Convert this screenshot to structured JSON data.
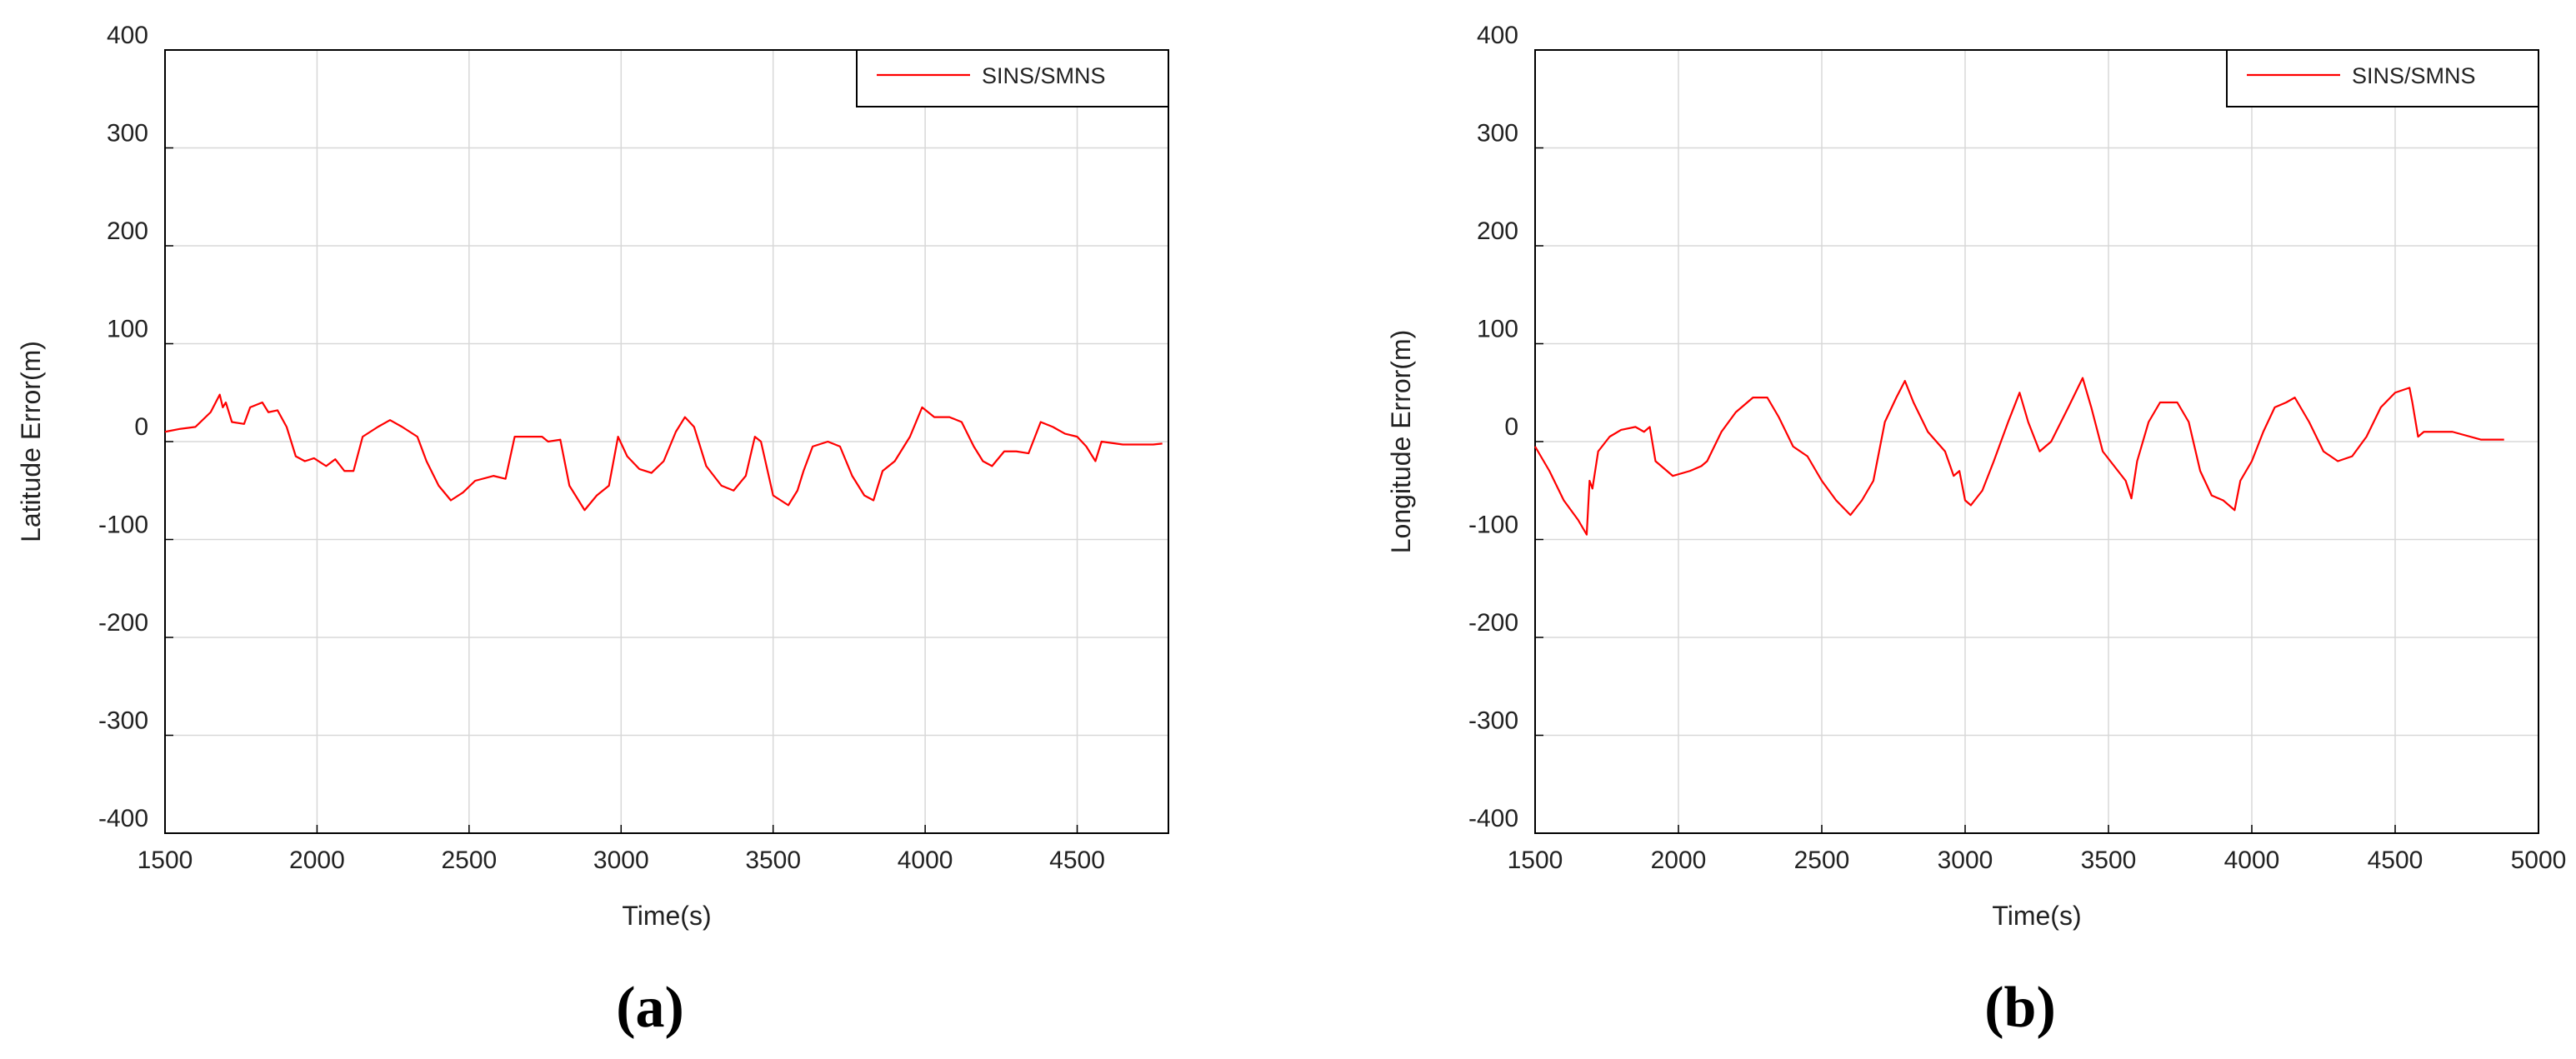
{
  "chart_data": [
    {
      "type": "line",
      "xlabel": "Time(s)",
      "ylabel": "Latitude Error(m)",
      "caption": "(a)",
      "grid": true,
      "legend": "upper right",
      "xlim": [
        1500,
        4800
      ],
      "xticks": [
        1500,
        2000,
        2500,
        3000,
        3500,
        4000,
        4500
      ],
      "ylim": [
        -400,
        400
      ],
      "yticks": [
        -400,
        -300,
        -200,
        -100,
        0,
        100,
        200,
        300,
        400
      ],
      "x": [
        1500,
        1550,
        1600,
        1650,
        1680,
        1690,
        1700,
        1720,
        1760,
        1780,
        1820,
        1840,
        1870,
        1900,
        1930,
        1960,
        1990,
        2030,
        2060,
        2090,
        2120,
        2150,
        2200,
        2240,
        2280,
        2330,
        2360,
        2400,
        2440,
        2480,
        2520,
        2580,
        2620,
        2650,
        2700,
        2740,
        2760,
        2800,
        2830,
        2880,
        2920,
        2960,
        2990,
        3020,
        3060,
        3100,
        3140,
        3180,
        3210,
        3240,
        3280,
        3330,
        3370,
        3410,
        3440,
        3460,
        3500,
        3550,
        3580,
        3600,
        3630,
        3680,
        3720,
        3760,
        3800,
        3830,
        3860,
        3900,
        3950,
        3990,
        4030,
        4080,
        4120,
        4160,
        4190,
        4220,
        4260,
        4300,
        4340,
        4380,
        4420,
        4460,
        4500,
        4530,
        4560,
        4580,
        4650,
        4750,
        4780
      ],
      "series": [
        {
          "name": "SINS/SMNS",
          "color": "#ff0000",
          "values": [
            10,
            13,
            15,
            30,
            48,
            35,
            40,
            20,
            18,
            35,
            40,
            30,
            32,
            15,
            -15,
            -20,
            -17,
            -25,
            -18,
            -30,
            -30,
            5,
            15,
            22,
            15,
            5,
            -20,
            -45,
            -60,
            -52,
            -40,
            -35,
            -38,
            5,
            5,
            5,
            0,
            2,
            -45,
            -70,
            -55,
            -45,
            5,
            -15,
            -28,
            -32,
            -20,
            10,
            25,
            15,
            -25,
            -45,
            -50,
            -35,
            5,
            0,
            -55,
            -65,
            -50,
            -30,
            -5,
            0,
            -5,
            -35,
            -55,
            -60,
            -30,
            -20,
            5,
            35,
            25,
            25,
            20,
            -5,
            -20,
            -25,
            -10,
            -10,
            -12,
            20,
            15,
            8,
            5,
            -5,
            -20,
            0,
            -3,
            -3,
            -2
          ]
        }
      ]
    },
    {
      "type": "line",
      "xlabel": "Time(s)",
      "ylabel": "Longitude Error(m)",
      "caption": "(b)",
      "grid": true,
      "legend": "upper right",
      "xlim": [
        1500,
        5000
      ],
      "xticks": [
        1500,
        2000,
        2500,
        3000,
        3500,
        4000,
        4500,
        5000
      ],
      "ylim": [
        -400,
        400
      ],
      "yticks": [
        -400,
        -300,
        -200,
        -100,
        0,
        100,
        200,
        300,
        400
      ],
      "x": [
        1500,
        1550,
        1600,
        1650,
        1680,
        1690,
        1700,
        1720,
        1760,
        1800,
        1850,
        1880,
        1900,
        1920,
        1980,
        2040,
        2080,
        2100,
        2150,
        2200,
        2260,
        2310,
        2350,
        2400,
        2450,
        2500,
        2550,
        2600,
        2640,
        2680,
        2720,
        2760,
        2790,
        2820,
        2870,
        2930,
        2960,
        2980,
        3000,
        3020,
        3060,
        3100,
        3150,
        3190,
        3220,
        3260,
        3300,
        3360,
        3410,
        3440,
        3480,
        3520,
        3560,
        3580,
        3600,
        3640,
        3680,
        3740,
        3780,
        3820,
        3860,
        3900,
        3940,
        3960,
        4000,
        4040,
        4080,
        4120,
        4150,
        4200,
        4250,
        4300,
        4350,
        4400,
        4450,
        4500,
        4550,
        4560,
        4580,
        4600,
        4700,
        4800,
        4880
      ],
      "series": [
        {
          "name": "SINS/SMNS",
          "color": "#ff0000",
          "values": [
            -5,
            -30,
            -60,
            -80,
            -95,
            -40,
            -48,
            -10,
            5,
            12,
            15,
            10,
            15,
            -20,
            -35,
            -30,
            -25,
            -20,
            10,
            30,
            45,
            45,
            25,
            -5,
            -15,
            -40,
            -60,
            -75,
            -60,
            -40,
            20,
            45,
            62,
            40,
            10,
            -10,
            -35,
            -30,
            -60,
            -65,
            -50,
            -20,
            20,
            50,
            20,
            -10,
            0,
            35,
            65,
            35,
            -10,
            -25,
            -40,
            -58,
            -20,
            20,
            40,
            40,
            20,
            -30,
            -55,
            -60,
            -70,
            -40,
            -20,
            10,
            35,
            40,
            45,
            20,
            -10,
            -20,
            -15,
            5,
            35,
            50,
            55,
            40,
            5,
            10,
            10,
            2,
            2
          ]
        }
      ]
    }
  ]
}
